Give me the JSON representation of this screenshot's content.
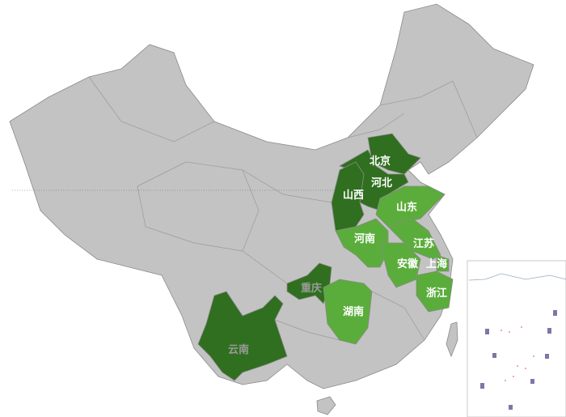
{
  "colors": {
    "base": "#c3c3c3",
    "highlight_dark": "#2f6f1f",
    "highlight_light": "#5aad3a",
    "border": "#8a8a8a"
  },
  "provinces": [
    {
      "name": "北京",
      "group": "dark"
    },
    {
      "name": "河北",
      "group": "dark"
    },
    {
      "name": "山西",
      "group": "dark"
    },
    {
      "name": "重庆",
      "group": "dark"
    },
    {
      "name": "云南",
      "group": "dark"
    },
    {
      "name": "山东",
      "group": "light"
    },
    {
      "name": "河南",
      "group": "light"
    },
    {
      "name": "江苏",
      "group": "light"
    },
    {
      "name": "安徽",
      "group": "light"
    },
    {
      "name": "上海",
      "group": "light"
    },
    {
      "name": "浙江",
      "group": "light"
    },
    {
      "name": "湖南",
      "group": "light"
    }
  ]
}
